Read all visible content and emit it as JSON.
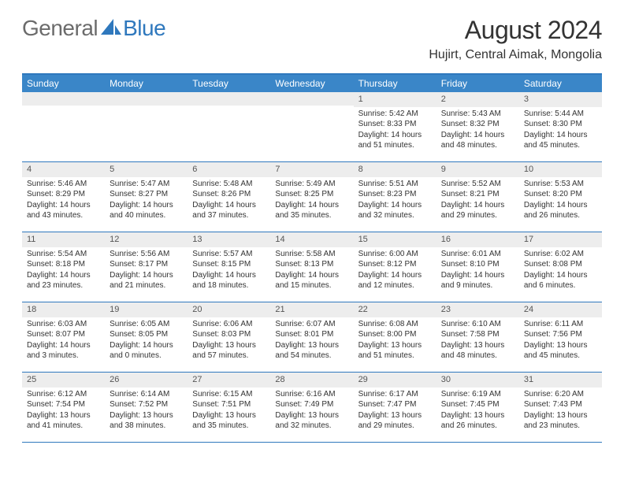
{
  "logo": {
    "text1": "General",
    "text2": "Blue"
  },
  "title": "August 2024",
  "location": "Hujirt, Central Aimak, Mongolia",
  "colors": {
    "header_bar": "#3a86c8",
    "border": "#2f78bd",
    "daynum_bg": "#ededed",
    "text": "#333333",
    "logo_gray": "#6b6b6b",
    "logo_blue": "#2f78bd"
  },
  "weekdays": [
    "Sunday",
    "Monday",
    "Tuesday",
    "Wednesday",
    "Thursday",
    "Friday",
    "Saturday"
  ],
  "weeks": [
    [
      null,
      null,
      null,
      null,
      {
        "n": "1",
        "sunrise": "Sunrise: 5:42 AM",
        "sunset": "Sunset: 8:33 PM",
        "d1": "Daylight: 14 hours",
        "d2": "and 51 minutes."
      },
      {
        "n": "2",
        "sunrise": "Sunrise: 5:43 AM",
        "sunset": "Sunset: 8:32 PM",
        "d1": "Daylight: 14 hours",
        "d2": "and 48 minutes."
      },
      {
        "n": "3",
        "sunrise": "Sunrise: 5:44 AM",
        "sunset": "Sunset: 8:30 PM",
        "d1": "Daylight: 14 hours",
        "d2": "and 45 minutes."
      }
    ],
    [
      {
        "n": "4",
        "sunrise": "Sunrise: 5:46 AM",
        "sunset": "Sunset: 8:29 PM",
        "d1": "Daylight: 14 hours",
        "d2": "and 43 minutes."
      },
      {
        "n": "5",
        "sunrise": "Sunrise: 5:47 AM",
        "sunset": "Sunset: 8:27 PM",
        "d1": "Daylight: 14 hours",
        "d2": "and 40 minutes."
      },
      {
        "n": "6",
        "sunrise": "Sunrise: 5:48 AM",
        "sunset": "Sunset: 8:26 PM",
        "d1": "Daylight: 14 hours",
        "d2": "and 37 minutes."
      },
      {
        "n": "7",
        "sunrise": "Sunrise: 5:49 AM",
        "sunset": "Sunset: 8:25 PM",
        "d1": "Daylight: 14 hours",
        "d2": "and 35 minutes."
      },
      {
        "n": "8",
        "sunrise": "Sunrise: 5:51 AM",
        "sunset": "Sunset: 8:23 PM",
        "d1": "Daylight: 14 hours",
        "d2": "and 32 minutes."
      },
      {
        "n": "9",
        "sunrise": "Sunrise: 5:52 AM",
        "sunset": "Sunset: 8:21 PM",
        "d1": "Daylight: 14 hours",
        "d2": "and 29 minutes."
      },
      {
        "n": "10",
        "sunrise": "Sunrise: 5:53 AM",
        "sunset": "Sunset: 8:20 PM",
        "d1": "Daylight: 14 hours",
        "d2": "and 26 minutes."
      }
    ],
    [
      {
        "n": "11",
        "sunrise": "Sunrise: 5:54 AM",
        "sunset": "Sunset: 8:18 PM",
        "d1": "Daylight: 14 hours",
        "d2": "and 23 minutes."
      },
      {
        "n": "12",
        "sunrise": "Sunrise: 5:56 AM",
        "sunset": "Sunset: 8:17 PM",
        "d1": "Daylight: 14 hours",
        "d2": "and 21 minutes."
      },
      {
        "n": "13",
        "sunrise": "Sunrise: 5:57 AM",
        "sunset": "Sunset: 8:15 PM",
        "d1": "Daylight: 14 hours",
        "d2": "and 18 minutes."
      },
      {
        "n": "14",
        "sunrise": "Sunrise: 5:58 AM",
        "sunset": "Sunset: 8:13 PM",
        "d1": "Daylight: 14 hours",
        "d2": "and 15 minutes."
      },
      {
        "n": "15",
        "sunrise": "Sunrise: 6:00 AM",
        "sunset": "Sunset: 8:12 PM",
        "d1": "Daylight: 14 hours",
        "d2": "and 12 minutes."
      },
      {
        "n": "16",
        "sunrise": "Sunrise: 6:01 AM",
        "sunset": "Sunset: 8:10 PM",
        "d1": "Daylight: 14 hours",
        "d2": "and 9 minutes."
      },
      {
        "n": "17",
        "sunrise": "Sunrise: 6:02 AM",
        "sunset": "Sunset: 8:08 PM",
        "d1": "Daylight: 14 hours",
        "d2": "and 6 minutes."
      }
    ],
    [
      {
        "n": "18",
        "sunrise": "Sunrise: 6:03 AM",
        "sunset": "Sunset: 8:07 PM",
        "d1": "Daylight: 14 hours",
        "d2": "and 3 minutes."
      },
      {
        "n": "19",
        "sunrise": "Sunrise: 6:05 AM",
        "sunset": "Sunset: 8:05 PM",
        "d1": "Daylight: 14 hours",
        "d2": "and 0 minutes."
      },
      {
        "n": "20",
        "sunrise": "Sunrise: 6:06 AM",
        "sunset": "Sunset: 8:03 PM",
        "d1": "Daylight: 13 hours",
        "d2": "and 57 minutes."
      },
      {
        "n": "21",
        "sunrise": "Sunrise: 6:07 AM",
        "sunset": "Sunset: 8:01 PM",
        "d1": "Daylight: 13 hours",
        "d2": "and 54 minutes."
      },
      {
        "n": "22",
        "sunrise": "Sunrise: 6:08 AM",
        "sunset": "Sunset: 8:00 PM",
        "d1": "Daylight: 13 hours",
        "d2": "and 51 minutes."
      },
      {
        "n": "23",
        "sunrise": "Sunrise: 6:10 AM",
        "sunset": "Sunset: 7:58 PM",
        "d1": "Daylight: 13 hours",
        "d2": "and 48 minutes."
      },
      {
        "n": "24",
        "sunrise": "Sunrise: 6:11 AM",
        "sunset": "Sunset: 7:56 PM",
        "d1": "Daylight: 13 hours",
        "d2": "and 45 minutes."
      }
    ],
    [
      {
        "n": "25",
        "sunrise": "Sunrise: 6:12 AM",
        "sunset": "Sunset: 7:54 PM",
        "d1": "Daylight: 13 hours",
        "d2": "and 41 minutes."
      },
      {
        "n": "26",
        "sunrise": "Sunrise: 6:14 AM",
        "sunset": "Sunset: 7:52 PM",
        "d1": "Daylight: 13 hours",
        "d2": "and 38 minutes."
      },
      {
        "n": "27",
        "sunrise": "Sunrise: 6:15 AM",
        "sunset": "Sunset: 7:51 PM",
        "d1": "Daylight: 13 hours",
        "d2": "and 35 minutes."
      },
      {
        "n": "28",
        "sunrise": "Sunrise: 6:16 AM",
        "sunset": "Sunset: 7:49 PM",
        "d1": "Daylight: 13 hours",
        "d2": "and 32 minutes."
      },
      {
        "n": "29",
        "sunrise": "Sunrise: 6:17 AM",
        "sunset": "Sunset: 7:47 PM",
        "d1": "Daylight: 13 hours",
        "d2": "and 29 minutes."
      },
      {
        "n": "30",
        "sunrise": "Sunrise: 6:19 AM",
        "sunset": "Sunset: 7:45 PM",
        "d1": "Daylight: 13 hours",
        "d2": "and 26 minutes."
      },
      {
        "n": "31",
        "sunrise": "Sunrise: 6:20 AM",
        "sunset": "Sunset: 7:43 PM",
        "d1": "Daylight: 13 hours",
        "d2": "and 23 minutes."
      }
    ]
  ]
}
